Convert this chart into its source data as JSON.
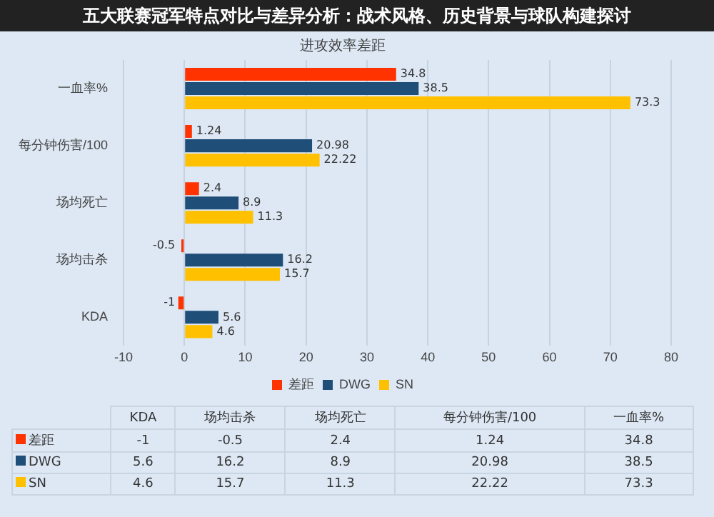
{
  "chart_data": [
    {
      "type": "bar",
      "orientation": "horizontal",
      "title": "进攻效率差距",
      "annotations": [
        "五大联赛冠军特点对比与差异分析：战术风格、历史背景与球队构建探讨"
      ],
      "categories": [
        "一血率%",
        "每分钟伤害/100",
        "场均死亡",
        "场均击杀",
        "KDA"
      ],
      "series": [
        {
          "name": "差距",
          "color": "#ff3300",
          "values": [
            34.8,
            1.24,
            2.4,
            -0.5,
            -1
          ]
        },
        {
          "name": "DWG",
          "color": "#1f4e79",
          "values": [
            38.5,
            20.98,
            8.9,
            16.2,
            5.6
          ]
        },
        {
          "name": "SN",
          "color": "#ffc000",
          "values": [
            73.3,
            22.22,
            11.3,
            15.7,
            4.6
          ]
        }
      ],
      "xlim": [
        -10,
        80
      ],
      "xticks": [
        -10,
        0,
        10,
        20,
        30,
        40,
        50,
        60,
        70,
        80
      ],
      "grid": "x",
      "legend": "bottom",
      "data_labels": true
    },
    {
      "type": "other",
      "categories": [
        "KDA",
        "场均击杀",
        "场均死亡",
        "每分钟伤害/100",
        "一血率%"
      ],
      "series": [
        {
          "name": "差距",
          "color": "#ff3300",
          "values": [
            -1,
            -0.5,
            2.4,
            1.24,
            34.8
          ]
        },
        {
          "name": "DWG",
          "color": "#1f4e79",
          "values": [
            5.6,
            16.2,
            8.9,
            20.98,
            38.5
          ]
        },
        {
          "name": "SN",
          "color": "#ffc000",
          "values": [
            4.6,
            15.7,
            11.3,
            22.22,
            73.3
          ]
        }
      ],
      "data_labels": true
    }
  ]
}
